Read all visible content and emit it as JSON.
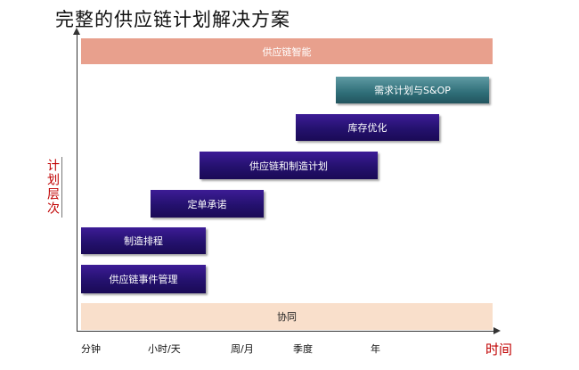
{
  "title": "完整的供应链计划解决方案",
  "y_axis_label": "计划层次",
  "x_axis_label": "时间",
  "x_ticks": [
    "分钟",
    "小时/天",
    "周/月",
    "季度",
    "年"
  ],
  "bars": {
    "intelligence": "供应链智能",
    "demand_planning": "需求计划与S&OP",
    "inventory_optimization": "库存优化",
    "supply_chain_manufacturing_planning": "供应链和制造计划",
    "order_promising": "定单承诺",
    "manufacturing_scheduling": "制造排程",
    "event_management": "供应链事件管理",
    "collaboration": "协同"
  },
  "colors": {
    "dark_bar": "#24116e",
    "teal_bar": "#2f6e78",
    "salmon_bar": "#e8a08d",
    "peach_bar": "#f9dfcb",
    "axis_label": "#c00000"
  }
}
